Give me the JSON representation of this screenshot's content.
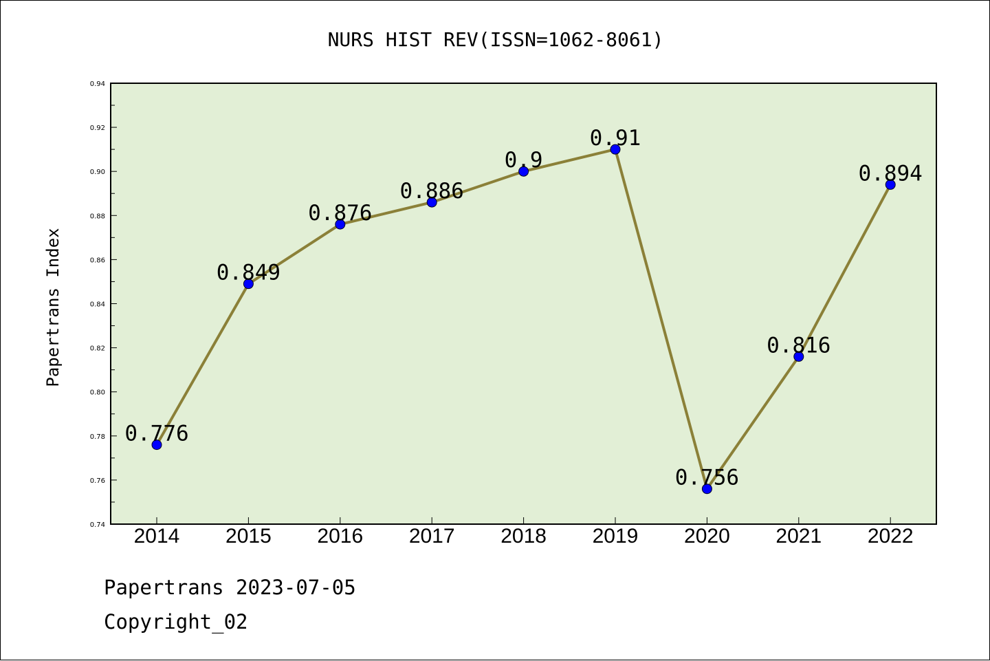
{
  "colors": {
    "plot_background": "#e2efd6",
    "line": "#8b8038",
    "marker": "#0000ff",
    "axis": "#000000"
  },
  "footer": {
    "line1": "Papertrans 2023-07-05",
    "line2": "Copyright_02"
  },
  "chart_data": {
    "type": "line",
    "title": "NURS HIST REV(ISSN=1062-8061)",
    "xlabel": "",
    "ylabel": "Papertrans Index",
    "categories": [
      "2014",
      "2015",
      "2016",
      "2017",
      "2018",
      "2019",
      "2020",
      "2021",
      "2022"
    ],
    "series": [
      {
        "values": [
          0.776,
          0.849,
          0.876,
          0.886,
          0.9,
          0.91,
          0.756,
          0.816,
          0.894
        ],
        "labels": [
          "0.776",
          "0.849",
          "0.876",
          "0.886",
          "0.9",
          "0.91",
          "0.756",
          "0.816",
          "0.894"
        ]
      }
    ],
    "ylim": [
      0.74,
      0.94
    ],
    "yticks": [
      0.74,
      0.76,
      0.78,
      0.8,
      0.82,
      0.84,
      0.86,
      0.88,
      0.9,
      0.92,
      0.94
    ],
    "ytick_labels": [
      "0.74",
      "0.76",
      "0.78",
      "0.80",
      "0.82",
      "0.84",
      "0.86",
      "0.88",
      "0.90",
      "0.92",
      "0.94"
    ],
    "grid": false,
    "legend": "none"
  }
}
